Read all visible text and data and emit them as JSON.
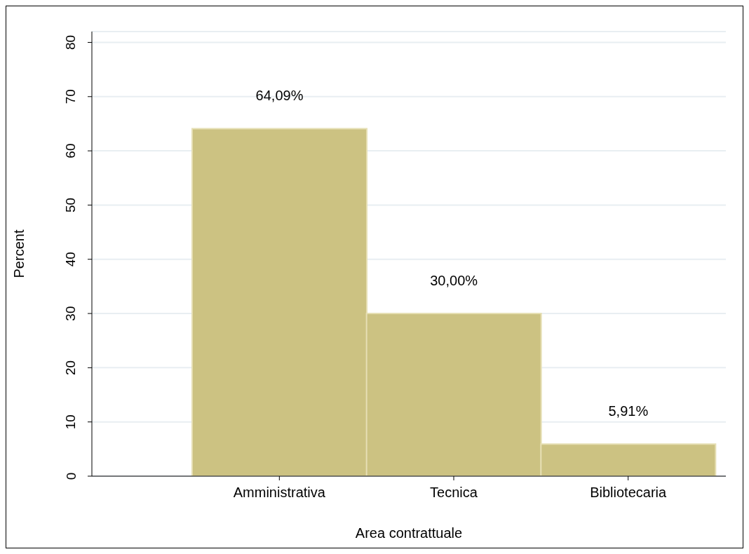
{
  "chart_data": {
    "type": "bar",
    "xlabel": "Area contrattuale",
    "ylabel": "Percent",
    "categories": [
      "Amministrativa",
      "Tecnica",
      "Bibliotecaria"
    ],
    "values": [
      64.09,
      30.0,
      5.91
    ],
    "value_labels": [
      "64,09%",
      "30,00%",
      "5,91%"
    ],
    "color": "#ccc282",
    "ylim": [
      0,
      82
    ],
    "yticks": [
      0,
      10,
      20,
      30,
      40,
      50,
      60,
      70,
      80
    ],
    "grid": "y"
  }
}
